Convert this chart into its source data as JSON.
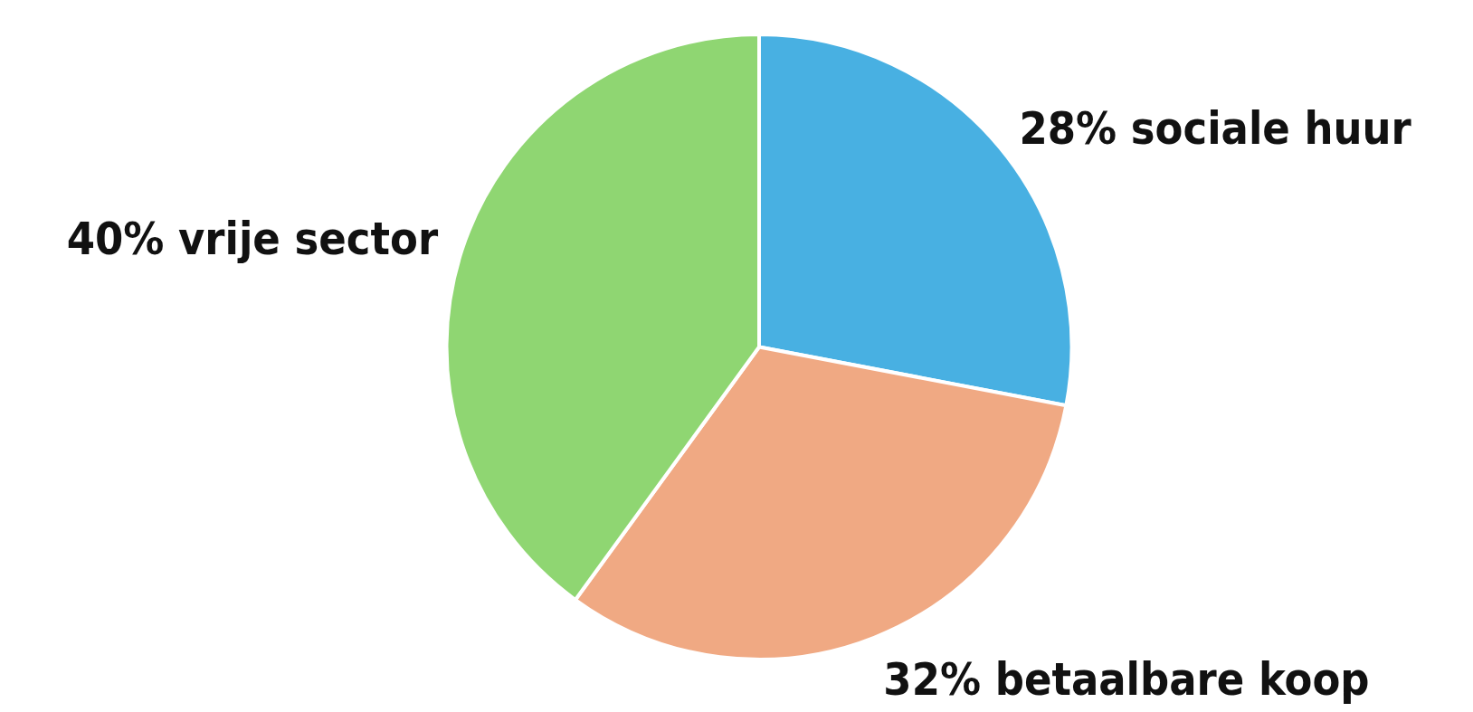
{
  "chart_data": {
    "type": "pie",
    "categories": [
      "28% sociale huur",
      "32% betaalbare koop",
      "40% vrije sector"
    ],
    "values": [
      28,
      32,
      40
    ],
    "colors": [
      "#48b0e2",
      "#f0a983",
      "#8fd672"
    ],
    "legend": false
  }
}
